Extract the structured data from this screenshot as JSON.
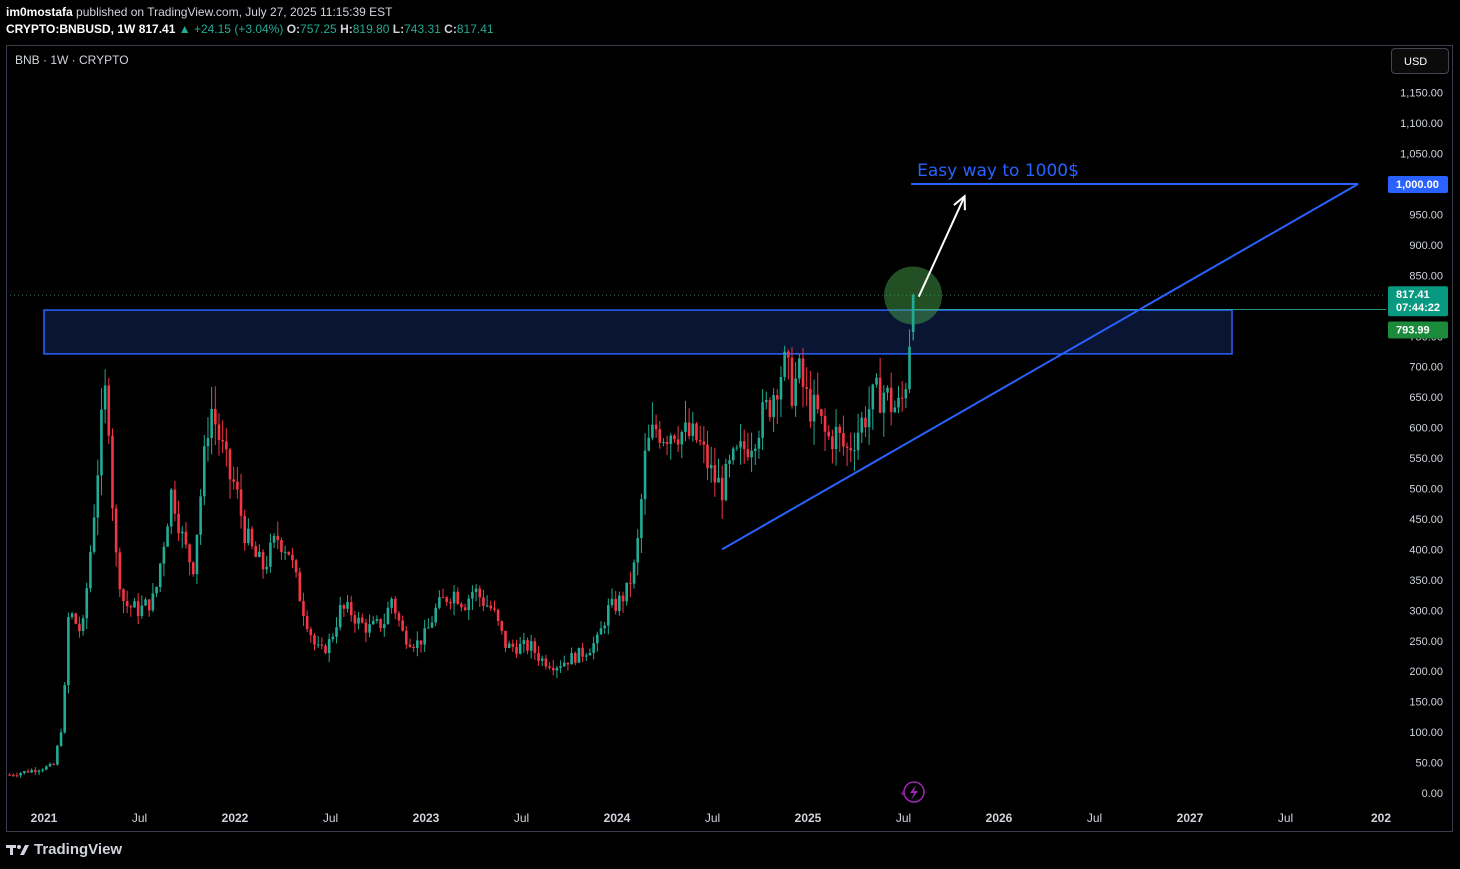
{
  "header": {
    "author": "im0mostafa",
    "published": "published on TradingView.com, July 27, 2025 11:15:39 EST",
    "symbol": "CRYPTO:BNBUSD, 1W",
    "last": "817.41",
    "change": "▲ +24.15 (+3.04%)",
    "o_label": "O:",
    "o_value": "757.25",
    "h_label": "H:",
    "h_value": "819.80",
    "l_label": "L:",
    "l_value": "743.31",
    "c_label": "C:",
    "c_value": "817.41"
  },
  "chart_label": "BNB · 1W · CRYPTO",
  "currency_button": "USD",
  "footer": {
    "brand": "TradingView"
  },
  "colors": {
    "up": "#22ab94",
    "down": "#f23645",
    "drawing": "#2962ff",
    "background": "#000000"
  },
  "chart_data": {
    "type": "candlestick",
    "title": "BNB · 1W · CRYPTO",
    "y_ticks": [
      "1,150.00",
      "1,100.00",
      "1,050.00",
      "1,000.00",
      "950.00",
      "900.00",
      "850.00",
      "800.00",
      "750.00",
      "700.00",
      "650.00",
      "600.00",
      "550.00",
      "500.00",
      "450.00",
      "400.00",
      "350.00",
      "300.00",
      "250.00",
      "200.00",
      "150.00",
      "100.00",
      "50.00",
      "0.00"
    ],
    "y_tick_values": [
      1150,
      1100,
      1050,
      1000,
      950,
      900,
      850,
      800,
      750,
      700,
      650,
      600,
      550,
      500,
      450,
      400,
      350,
      300,
      250,
      200,
      150,
      100,
      50,
      0
    ],
    "ylim": [
      -2,
      1160
    ],
    "x_ticks": [
      "2021",
      "Jul",
      "2022",
      "Jul",
      "2023",
      "Jul",
      "2024",
      "Jul",
      "2025",
      "Jul",
      "2026",
      "Jul",
      "2027",
      "Jul",
      "202"
    ],
    "x_tick_dates": [
      2021.0,
      2021.5,
      2022.0,
      2022.5,
      2023.0,
      2023.5,
      2024.0,
      2024.5,
      2025.0,
      2025.5,
      2026.0,
      2026.5,
      2027.0,
      2027.5,
      2028.0
    ],
    "xlim": [
      2020.8,
      2028.0
    ],
    "weekly_close_path": [
      [
        2020.82,
        30
      ],
      [
        2020.95,
        38
      ],
      [
        2021.05,
        45
      ],
      [
        2021.1,
        120
      ],
      [
        2021.13,
        300
      ],
      [
        2021.2,
        260
      ],
      [
        2021.25,
        420
      ],
      [
        2021.3,
        600
      ],
      [
        2021.33,
        680
      ],
      [
        2021.37,
        400
      ],
      [
        2021.42,
        310
      ],
      [
        2021.5,
        300
      ],
      [
        2021.58,
        320
      ],
      [
        2021.63,
        420
      ],
      [
        2021.67,
        500
      ],
      [
        2021.73,
        410
      ],
      [
        2021.78,
        370
      ],
      [
        2021.83,
        520
      ],
      [
        2021.87,
        640
      ],
      [
        2021.92,
        580
      ],
      [
        2021.97,
        520
      ],
      [
        2022.0,
        505
      ],
      [
        2022.05,
        430
      ],
      [
        2022.1,
        390
      ],
      [
        2022.15,
        370
      ],
      [
        2022.22,
        420
      ],
      [
        2022.28,
        400
      ],
      [
        2022.35,
        310
      ],
      [
        2022.42,
        240
      ],
      [
        2022.45,
        230
      ],
      [
        2022.5,
        250
      ],
      [
        2022.55,
        300
      ],
      [
        2022.6,
        300
      ],
      [
        2022.65,
        280
      ],
      [
        2022.7,
        270
      ],
      [
        2022.78,
        280
      ],
      [
        2022.82,
        320
      ],
      [
        2022.88,
        260
      ],
      [
        2022.95,
        245
      ],
      [
        2023.0,
        260
      ],
      [
        2023.05,
        300
      ],
      [
        2023.1,
        320
      ],
      [
        2023.15,
        330
      ],
      [
        2023.2,
        310
      ],
      [
        2023.25,
        335
      ],
      [
        2023.3,
        315
      ],
      [
        2023.35,
        300
      ],
      [
        2023.42,
        240
      ],
      [
        2023.5,
        240
      ],
      [
        2023.55,
        240
      ],
      [
        2023.6,
        220
      ],
      [
        2023.68,
        210
      ],
      [
        2023.75,
        220
      ],
      [
        2023.82,
        230
      ],
      [
        2023.9,
        250
      ],
      [
        2023.95,
        300
      ],
      [
        2024.0,
        310
      ],
      [
        2024.05,
        330
      ],
      [
        2024.1,
        380
      ],
      [
        2024.15,
        560
      ],
      [
        2024.2,
        600
      ],
      [
        2024.25,
        590
      ],
      [
        2024.3,
        600
      ],
      [
        2024.35,
        590
      ],
      [
        2024.42,
        580
      ],
      [
        2024.45,
        560
      ],
      [
        2024.5,
        520
      ],
      [
        2024.55,
        500
      ],
      [
        2024.6,
        540
      ],
      [
        2024.65,
        560
      ],
      [
        2024.7,
        580
      ],
      [
        2024.75,
        610
      ],
      [
        2024.8,
        640
      ],
      [
        2024.85,
        690
      ],
      [
        2024.88,
        700
      ],
      [
        2024.92,
        660
      ],
      [
        2024.95,
        690
      ],
      [
        2025.0,
        640
      ],
      [
        2025.05,
        620
      ],
      [
        2025.1,
        580
      ],
      [
        2025.15,
        590
      ],
      [
        2025.2,
        560
      ],
      [
        2025.25,
        590
      ],
      [
        2025.3,
        620
      ],
      [
        2025.35,
        650
      ],
      [
        2025.4,
        660
      ],
      [
        2025.43,
        640
      ],
      [
        2025.47,
        630
      ],
      [
        2025.5,
        650
      ],
      [
        2025.52,
        700
      ],
      [
        2025.54,
        757
      ],
      [
        2025.56,
        817
      ]
    ],
    "last_price": "817.41",
    "countdown": "07:44:22",
    "prev_close": "793.99",
    "target_price": "1,000.00",
    "resistance_zone": [
      721,
      793
    ],
    "zone_dates": [
      2021.0,
      2027.22
    ],
    "trendline": [
      [
        2024.55,
        400
      ],
      [
        2027.88,
        1000
      ]
    ],
    "target_line_dates": [
      2025.54,
      2027.88
    ],
    "arrow": [
      [
        2025.58,
        815
      ],
      [
        2025.82,
        980
      ]
    ],
    "highlight_circle": [
      2025.55,
      817
    ],
    "annotations": [
      "Easy way to 1000$"
    ]
  }
}
